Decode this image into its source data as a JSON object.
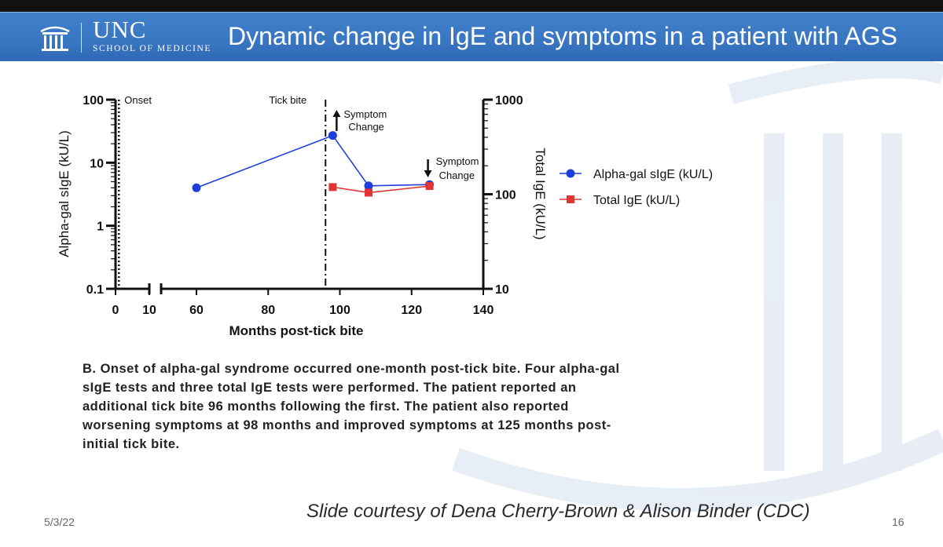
{
  "slide": {
    "logo_unc": "UNC",
    "logo_school": "SCHOOL OF MEDICINE",
    "title": "Dynamic change in IgE and symptoms in a patient with AGS",
    "caption": "B. Onset of alpha-gal syndrome occurred one-month post-tick bite. Four alpha-gal sIgE tests and three total IgE tests were performed. The patient reported an additional tick bite 96 months following the first. The patient also reported worsening symptoms at 98 months and improved symptoms at 125 months post-initial tick bite.",
    "date": "5/3/22",
    "courtesy": "Slide courtesy of Dena Cherry-Brown & Alison Binder (CDC)",
    "page_number": "16"
  },
  "chart_data": {
    "type": "line",
    "xlabel": "Months post-tick bite",
    "ylabel": "Alpha-gal sIgE (kU/L)",
    "y2label": "Total IgE (kU/L)",
    "x_ticks": [
      "0",
      "10",
      "60",
      "80",
      "100",
      "120",
      "140"
    ],
    "y_ticks": [
      "0.1",
      "1",
      "10",
      "100"
    ],
    "y2_ticks": [
      "10",
      "100",
      "1000"
    ],
    "y_scale": "log",
    "y2_scale": "log",
    "ylim": [
      0.1,
      100
    ],
    "y2lim": [
      10,
      1000
    ],
    "x_break": [
      10,
      55
    ],
    "series": [
      {
        "name": "Alpha-gal sIgE (kU/L)",
        "axis": "left",
        "color": "#1f3fdd",
        "marker": "circle",
        "x": [
          60,
          98,
          108,
          125
        ],
        "y": [
          4.0,
          27,
          4.3,
          4.5
        ]
      },
      {
        "name": "Total IgE (kU/L)",
        "axis": "right",
        "color": "#e03535",
        "marker": "square",
        "x": [
          98,
          108,
          125
        ],
        "y": [
          119,
          104,
          122
        ]
      }
    ],
    "annotations": [
      {
        "text": "Onset",
        "x": 1
      },
      {
        "text": "Tick bite",
        "x": 96
      },
      {
        "text": "Symptom Change",
        "lines": [
          "Symptom",
          "Change"
        ],
        "x": 98,
        "direction": "up"
      },
      {
        "text": "Symptom Change",
        "lines": [
          "Symptom",
          "Change"
        ],
        "x": 125,
        "direction": "down"
      }
    ],
    "legend_position": "right"
  }
}
